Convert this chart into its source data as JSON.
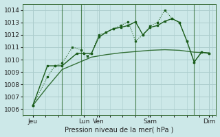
{
  "bg_color": "#cce8e8",
  "grid_color": "#aacccc",
  "line_color": "#1a5c1a",
  "xlabel": "Pression niveau de la mer( hPa )",
  "ylim": [
    1005.5,
    1014.5
  ],
  "yticks": [
    1006,
    1007,
    1008,
    1009,
    1010,
    1011,
    1012,
    1013,
    1014
  ],
  "xlim": [
    -0.2,
    13.0
  ],
  "xtick_positions": [
    0.5,
    4.0,
    5.0,
    8.5,
    12.5
  ],
  "xtick_labels": [
    "Jeu",
    "Lun",
    "Ven",
    "Sam",
    "Dim"
  ],
  "vline_positions": [
    2.5,
    3.8,
    7.5,
    11.5
  ],
  "smooth_x": [
    0.5,
    1.5,
    2.5,
    3.5,
    4.5,
    5.5,
    6.5,
    7.5,
    8.5,
    9.5,
    10.5,
    11.5,
    12.5
  ],
  "smooth_y": [
    1006.3,
    1007.8,
    1009.2,
    1009.7,
    1010.2,
    1010.4,
    1010.55,
    1010.65,
    1010.75,
    1010.8,
    1010.75,
    1010.6,
    1010.55
  ],
  "series1_x": [
    0.5,
    0.5,
    1.5,
    2.0,
    2.5,
    3.2,
    3.8,
    4.2,
    4.5,
    5.0,
    5.5,
    6.0,
    6.5,
    7.0,
    7.5,
    8.0,
    8.5,
    9.0,
    9.5,
    10.0,
    10.5,
    11.0,
    11.5,
    12.0,
    12.5
  ],
  "series1_y": [
    1006.3,
    1006.3,
    1008.6,
    1009.5,
    1009.7,
    1011.0,
    1010.8,
    1010.3,
    1010.5,
    1012.0,
    1012.2,
    1012.5,
    1012.75,
    1013.05,
    1011.5,
    1012.0,
    1012.7,
    1013.0,
    1014.0,
    1013.3,
    1013.0,
    1011.5,
    1009.8,
    1010.6,
    1010.5
  ],
  "series2_x": [
    0.5,
    1.5,
    2.0,
    2.5,
    3.5,
    4.0,
    4.5,
    5.0,
    5.5,
    6.0,
    6.5,
    7.0,
    7.5,
    8.0,
    8.5,
    9.0,
    9.5,
    10.0,
    10.5,
    11.0,
    11.5,
    12.0,
    12.5
  ],
  "series2_y": [
    1006.3,
    1009.5,
    1009.5,
    1009.5,
    1010.5,
    1010.5,
    1010.5,
    1011.8,
    1012.2,
    1012.5,
    1012.6,
    1012.75,
    1013.05,
    1012.0,
    1012.6,
    1012.75,
    1013.1,
    1013.3,
    1013.0,
    1011.5,
    1009.8,
    1010.6,
    1010.5
  ]
}
